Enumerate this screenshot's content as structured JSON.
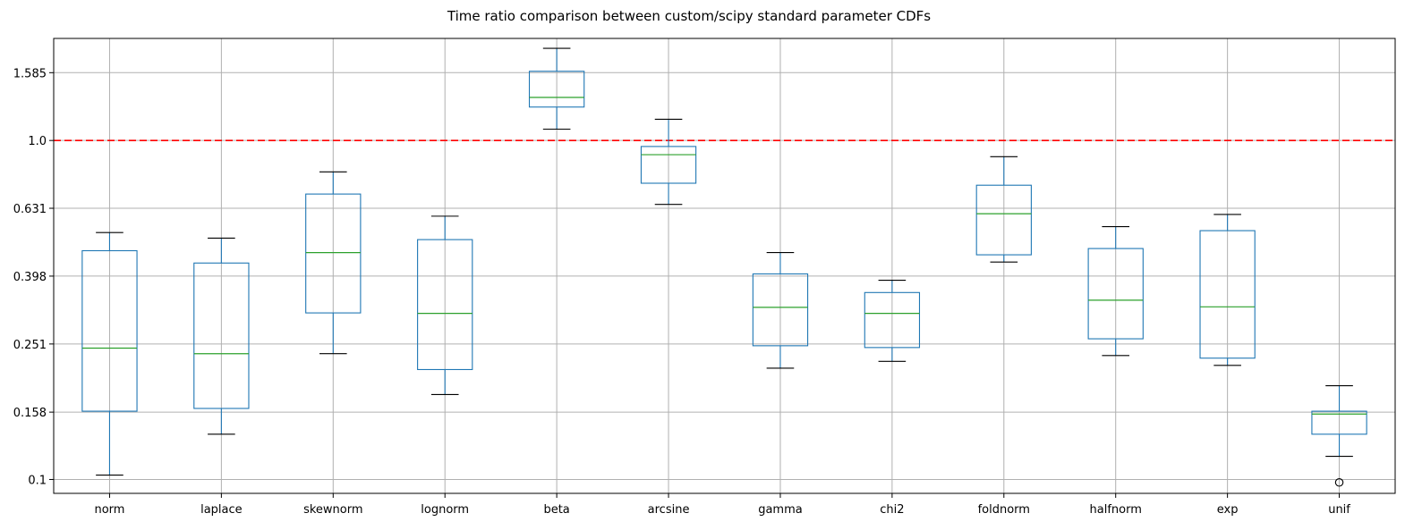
{
  "chart_data": {
    "type": "box",
    "title": "Time ratio comparison between custom/scipy standard parameter CDFs",
    "xlabel": "",
    "ylabel": "",
    "y_scale": "log",
    "ylim": [
      0.091,
      2.0
    ],
    "y_ticks": [
      {
        "value": 0.1,
        "label": "0.1"
      },
      {
        "value": 0.158,
        "label": "0.158"
      },
      {
        "value": 0.251,
        "label": "0.251"
      },
      {
        "value": 0.398,
        "label": "0.398"
      },
      {
        "value": 0.631,
        "label": "0.631"
      },
      {
        "value": 1.0,
        "label": "1.0"
      },
      {
        "value": 1.585,
        "label": "1.585"
      }
    ],
    "grid": true,
    "reference_line": {
      "value": 1.0,
      "style": "dashed",
      "color": "#ff0000"
    },
    "colors": {
      "box": "#1f77b4",
      "median": "#2ca02c",
      "whisker_cap": "#000000",
      "grid": "#b0b0b0",
      "reference": "#ff0000"
    },
    "boxes": [
      {
        "label": "norm",
        "whisker_low": 0.103,
        "q1": 0.159,
        "median": 0.244,
        "q3": 0.473,
        "whisker_high": 0.535,
        "outliers": []
      },
      {
        "label": "laplace",
        "whisker_low": 0.136,
        "q1": 0.162,
        "median": 0.235,
        "q3": 0.435,
        "whisker_high": 0.515,
        "outliers": []
      },
      {
        "label": "skewnorm",
        "whisker_low": 0.235,
        "q1": 0.31,
        "median": 0.467,
        "q3": 0.695,
        "whisker_high": 0.808,
        "outliers": []
      },
      {
        "label": "lognorm",
        "whisker_low": 0.178,
        "q1": 0.211,
        "median": 0.309,
        "q3": 0.51,
        "whisker_high": 0.598,
        "outliers": []
      },
      {
        "label": "beta",
        "whisker_low": 1.08,
        "q1": 1.255,
        "median": 1.34,
        "q3": 1.6,
        "whisker_high": 1.87,
        "outliers": []
      },
      {
        "label": "arcsine",
        "whisker_low": 0.648,
        "q1": 0.748,
        "median": 0.908,
        "q3": 0.96,
        "whisker_high": 1.155,
        "outliers": []
      },
      {
        "label": "gamma",
        "whisker_low": 0.213,
        "q1": 0.248,
        "median": 0.322,
        "q3": 0.404,
        "whisker_high": 0.467,
        "outliers": []
      },
      {
        "label": "chi2",
        "whisker_low": 0.223,
        "q1": 0.245,
        "median": 0.309,
        "q3": 0.356,
        "whisker_high": 0.387,
        "outliers": []
      },
      {
        "label": "foldnorm",
        "whisker_low": 0.438,
        "q1": 0.46,
        "median": 0.608,
        "q3": 0.738,
        "whisker_high": 0.896,
        "outliers": []
      },
      {
        "label": "halfnorm",
        "whisker_low": 0.232,
        "q1": 0.26,
        "median": 0.338,
        "q3": 0.48,
        "whisker_high": 0.557,
        "outliers": []
      },
      {
        "label": "exp",
        "whisker_low": 0.217,
        "q1": 0.228,
        "median": 0.323,
        "q3": 0.542,
        "whisker_high": 0.605,
        "outliers": []
      },
      {
        "label": "unif",
        "whisker_low": 0.117,
        "q1": 0.136,
        "median": 0.156,
        "q3": 0.159,
        "whisker_high": 0.189,
        "outliers": [
          0.098
        ]
      }
    ]
  }
}
